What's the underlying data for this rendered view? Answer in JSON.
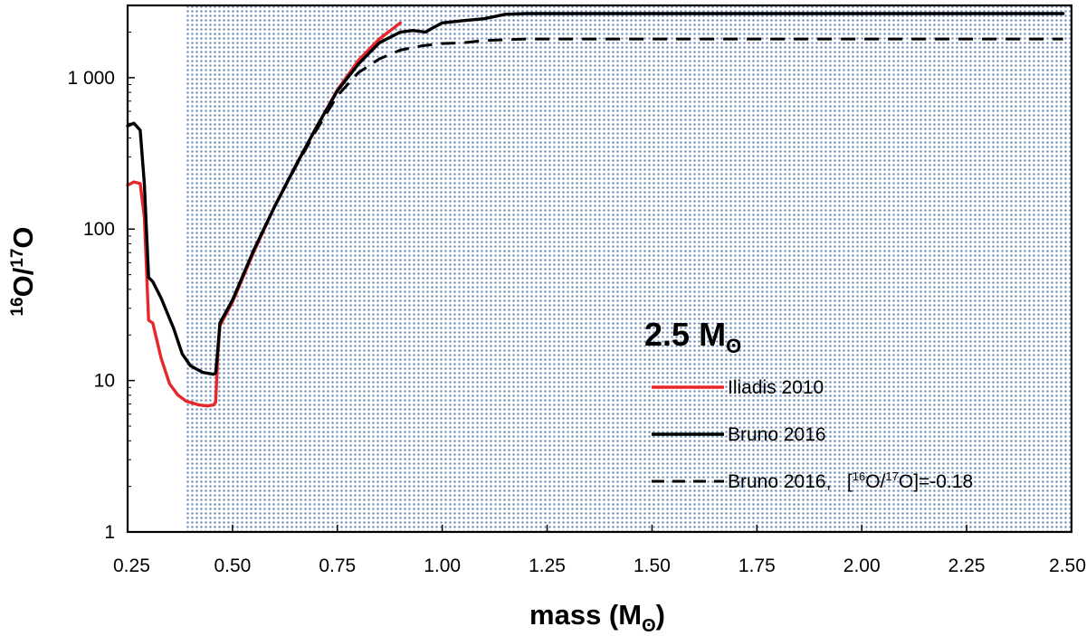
{
  "chart_data": {
    "type": "line",
    "title": "",
    "annotation": {
      "mass_value": "2.5",
      "mass_symbol": "M",
      "mass_subscript": "ʘ"
    },
    "xlabel": {
      "text": "mass (M",
      "subscript": "ʘ",
      "close": ")"
    },
    "ylabel": {
      "base": "O/",
      "sup1": "16",
      "sup2": "17",
      "tail": "O"
    },
    "x_scale": "linear",
    "y_scale": "log",
    "xlim": [
      0.25,
      2.5
    ],
    "ylim": [
      1,
      3000
    ],
    "x_ticks": [
      0.25,
      0.5,
      0.75,
      1.0,
      1.25,
      1.5,
      1.75,
      2.0,
      2.25,
      2.5
    ],
    "x_tick_labels": [
      "0.25",
      "0.50",
      "0.75",
      "1.00",
      "1.25",
      "1.50",
      "1.75",
      "2.00",
      "2.25",
      "2.50"
    ],
    "y_ticks": [
      1,
      10,
      100,
      1000
    ],
    "y_tick_labels": [
      "1",
      "10",
      "100",
      "1 000"
    ],
    "shaded_region": {
      "x_start": 0.39,
      "x_end": 2.5,
      "pattern": "dotted",
      "color": "#5b7fae"
    },
    "legend_position": "center-right",
    "series": [
      {
        "name": "Iliadis 2010",
        "color": "#e8272a",
        "style": "solid",
        "x": [
          0.25,
          0.265,
          0.28,
          0.29,
          0.3,
          0.31,
          0.33,
          0.35,
          0.37,
          0.39,
          0.42,
          0.44,
          0.455,
          0.46,
          0.465,
          0.47,
          0.5,
          0.55,
          0.6,
          0.65,
          0.7,
          0.75,
          0.8,
          0.85,
          0.9
        ],
        "y": [
          195,
          205,
          200,
          120,
          25,
          24,
          14,
          9.5,
          8,
          7.3,
          6.9,
          6.8,
          6.9,
          7.2,
          15,
          23,
          33,
          70,
          140,
          260,
          470,
          830,
          1300,
          1800,
          2300
        ]
      },
      {
        "name": "Bruno 2016",
        "color": "#000000",
        "style": "solid",
        "x": [
          0.25,
          0.265,
          0.28,
          0.29,
          0.3,
          0.31,
          0.33,
          0.36,
          0.38,
          0.4,
          0.43,
          0.455,
          0.46,
          0.465,
          0.47,
          0.5,
          0.55,
          0.6,
          0.65,
          0.7,
          0.75,
          0.8,
          0.85,
          0.9,
          0.93,
          0.96,
          0.98,
          1.0,
          1.05,
          1.1,
          1.15,
          1.2,
          1.5,
          2.0,
          2.48
        ],
        "y": [
          480,
          500,
          450,
          200,
          48,
          45,
          35,
          22,
          15,
          12.5,
          11.3,
          11.0,
          11.2,
          16,
          24,
          34,
          72,
          140,
          260,
          470,
          820,
          1230,
          1700,
          2000,
          2050,
          2000,
          2150,
          2300,
          2380,
          2450,
          2620,
          2650,
          2650,
          2650,
          2650
        ]
      },
      {
        "name": "Bruno 2016,   [¹⁶O/¹⁷O]=-0.18",
        "color": "#000000",
        "style": "dashed",
        "x": [
          0.47,
          0.5,
          0.55,
          0.6,
          0.65,
          0.7,
          0.75,
          0.8,
          0.85,
          0.9,
          0.95,
          1.0,
          1.05,
          1.1,
          1.15,
          1.2,
          1.5,
          2.0,
          2.48
        ],
        "y": [
          24,
          34,
          72,
          140,
          255,
          450,
          760,
          1080,
          1330,
          1520,
          1620,
          1680,
          1700,
          1760,
          1780,
          1800,
          1800,
          1800,
          1800
        ]
      }
    ]
  },
  "legend": {
    "items": [
      {
        "label": "Iliadis 2010"
      },
      {
        "label": "Bruno 2016"
      },
      {
        "label_prefix": "Bruno 2016,   [",
        "sup1": "16",
        "mid": "O/",
        "sup2": "17",
        "suffix": "O]=-0.18"
      }
    ]
  }
}
